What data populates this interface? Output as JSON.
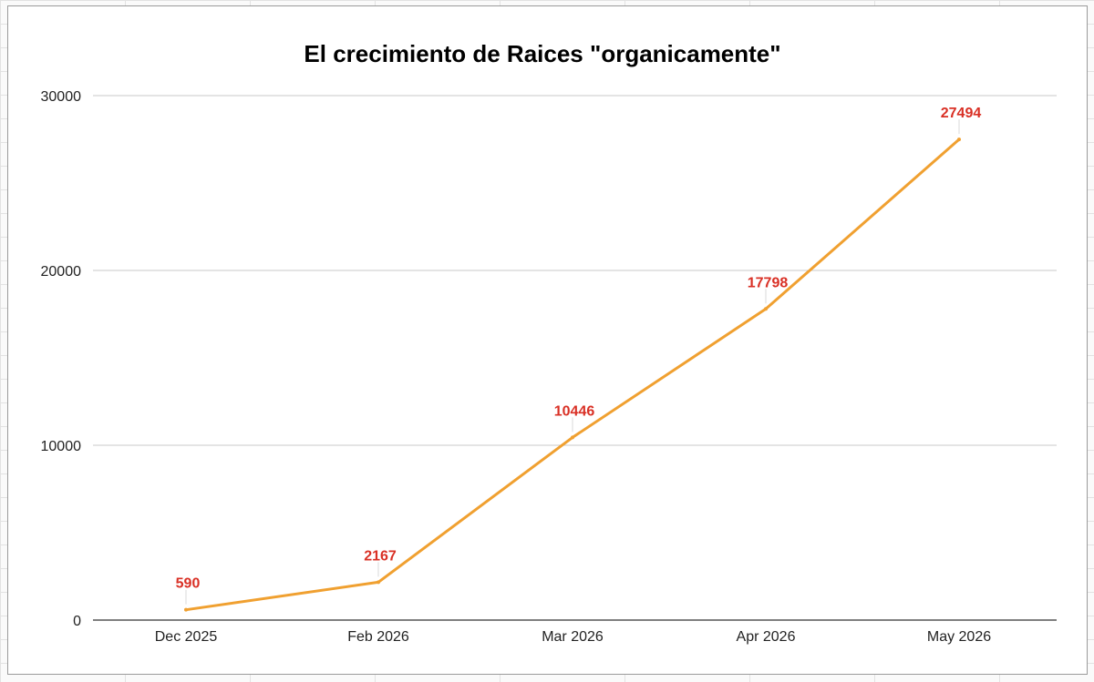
{
  "chart_data": {
    "type": "line",
    "title": "El crecimiento de Raices \"organicamente\"",
    "xlabel": "",
    "ylabel": "",
    "categories": [
      "Dec 2025",
      "Feb 2026",
      "Mar 2026",
      "Apr 2026",
      "May 2026"
    ],
    "series": [
      {
        "values": [
          590,
          2167,
          10446,
          17798,
          27494
        ],
        "color": "#f0a030"
      }
    ],
    "data_labels": [
      "590",
      "2167",
      "10446",
      "17798",
      "27494"
    ],
    "data_label_color": "#d93025",
    "ylim": [
      0,
      30000
    ],
    "yticks": [
      0,
      10000,
      20000,
      30000
    ],
    "ytick_labels": [
      "0",
      "10000",
      "20000",
      "30000"
    ],
    "grid": true,
    "legend": "none"
  }
}
